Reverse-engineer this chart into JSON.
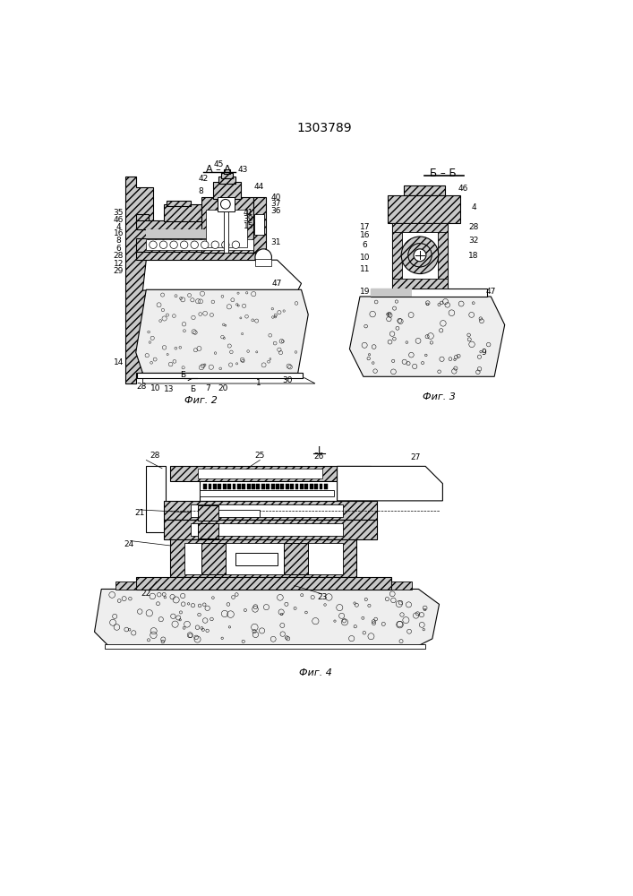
{
  "title": "1303789",
  "bg_color": "#ffffff",
  "fig2_caption": "Фиг. 2",
  "fig3_caption": "Фиг. 3",
  "fig4_caption": "Фиг. 4",
  "fig2_label": "А – А",
  "fig3_label": "Б – Б"
}
